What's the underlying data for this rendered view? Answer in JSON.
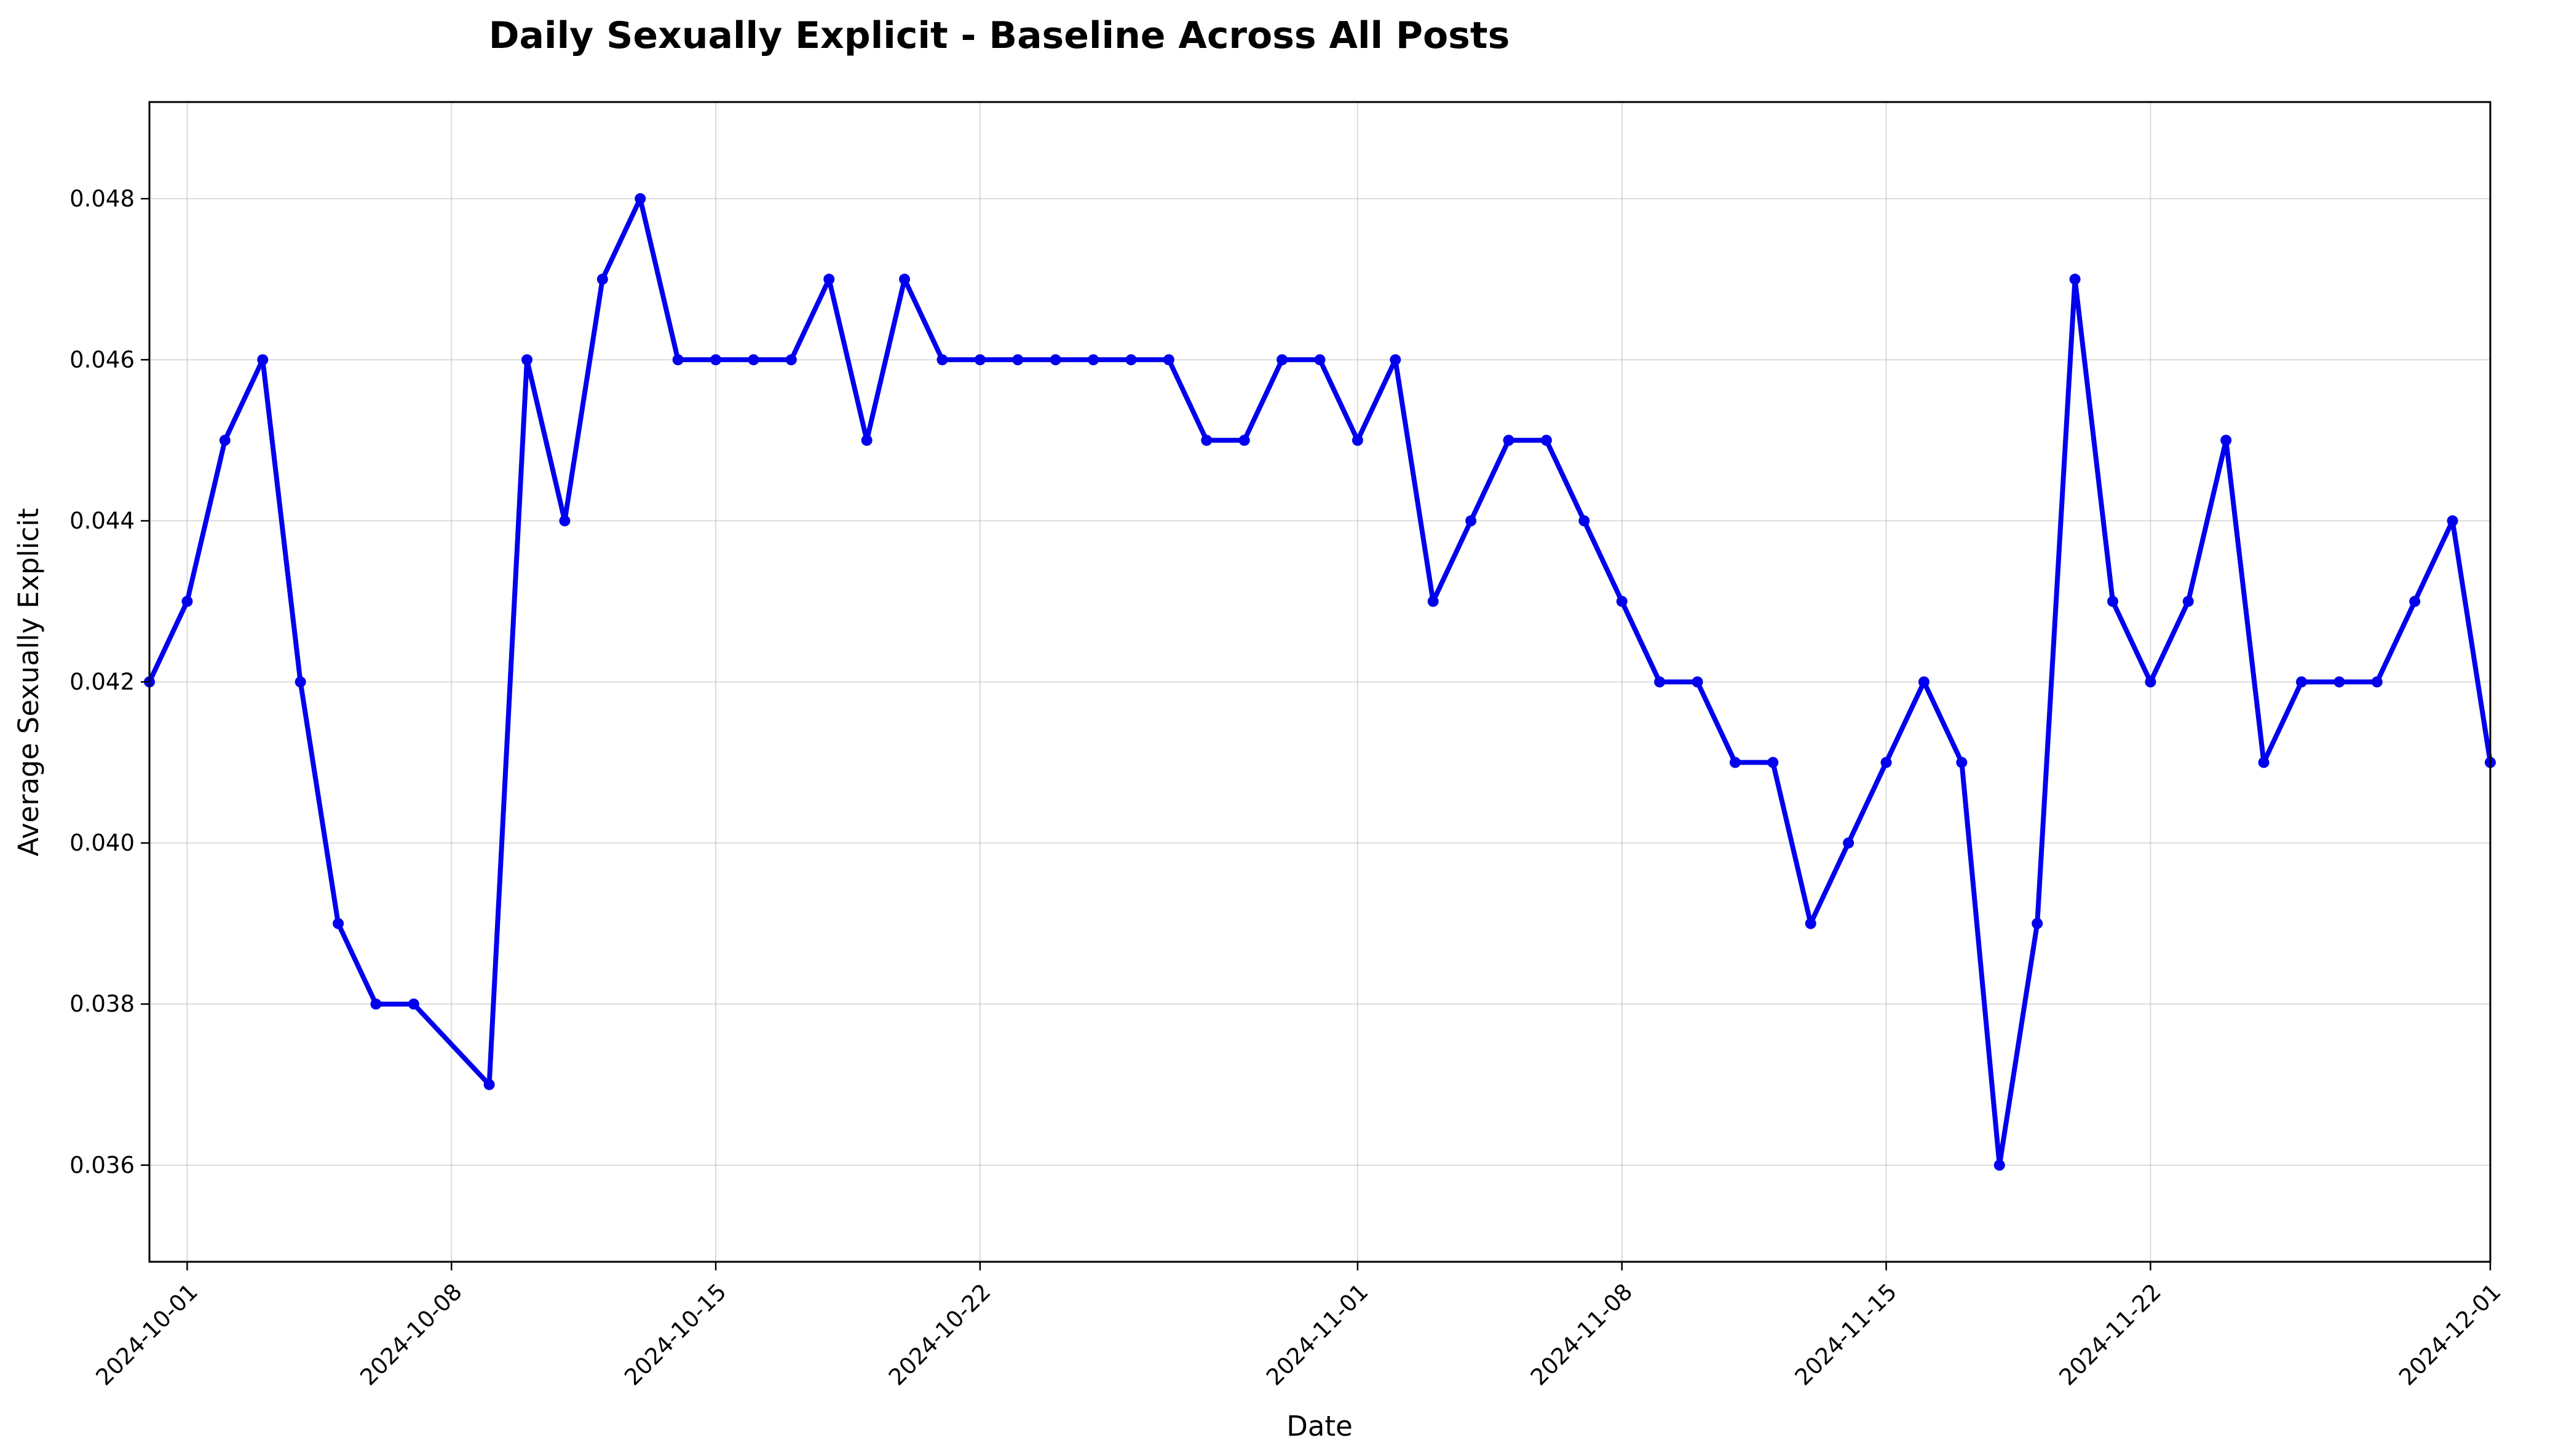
{
  "chart_data": {
    "type": "line",
    "title": "Daily Sexually Explicit - Baseline Across All Posts",
    "xlabel": "Date",
    "ylabel": "Average Sexually Explicit",
    "x_tick_labels": [
      "2024-10-01",
      "2024-10-08",
      "2024-10-15",
      "2024-10-22",
      "2024-11-01",
      "2024-11-08",
      "2024-11-15",
      "2024-11-22",
      "2024-12-01"
    ],
    "y_tick_labels": [
      "0.036",
      "0.038",
      "0.040",
      "0.042",
      "0.044",
      "0.046",
      "0.048"
    ],
    "y_ticks": [
      0.036,
      0.038,
      0.04,
      0.042,
      0.044,
      0.046,
      0.048
    ],
    "xlim": [
      "2024-09-30",
      "2024-12-01"
    ],
    "ylim": [
      0.0348,
      0.0492
    ],
    "grid": true,
    "color": "#0000ee",
    "series": [
      {
        "x": [
          "2024-09-30",
          "2024-10-01",
          "2024-10-02",
          "2024-10-03",
          "2024-10-04",
          "2024-10-05",
          "2024-10-06",
          "2024-10-07",
          "2024-10-09",
          "2024-10-10",
          "2024-10-11",
          "2024-10-12",
          "2024-10-13",
          "2024-10-14",
          "2024-10-15",
          "2024-10-16",
          "2024-10-17",
          "2024-10-18",
          "2024-10-19",
          "2024-10-20",
          "2024-10-21",
          "2024-10-22",
          "2024-10-23",
          "2024-10-24",
          "2024-10-25",
          "2024-10-26",
          "2024-10-27",
          "2024-10-28",
          "2024-10-29",
          "2024-10-30",
          "2024-10-31",
          "2024-11-01",
          "2024-11-02",
          "2024-11-03",
          "2024-11-04",
          "2024-11-05",
          "2024-11-06",
          "2024-11-07",
          "2024-11-08",
          "2024-11-09",
          "2024-11-10",
          "2024-11-11",
          "2024-11-12",
          "2024-11-13",
          "2024-11-14",
          "2024-11-15",
          "2024-11-16",
          "2024-11-17",
          "2024-11-18",
          "2024-11-19",
          "2024-11-20",
          "2024-11-21",
          "2024-11-22",
          "2024-11-23",
          "2024-11-24",
          "2024-11-25",
          "2024-11-26",
          "2024-11-27",
          "2024-11-28",
          "2024-11-29",
          "2024-11-30",
          "2024-12-01"
        ],
        "y": [
          0.042,
          0.043,
          0.045,
          0.046,
          0.042,
          0.039,
          0.038,
          0.038,
          0.037,
          0.046,
          0.044,
          0.047,
          0.048,
          0.046,
          0.046,
          0.046,
          0.046,
          0.047,
          0.045,
          0.047,
          0.046,
          0.046,
          0.046,
          0.046,
          0.046,
          0.046,
          0.046,
          0.045,
          0.045,
          0.046,
          0.046,
          0.045,
          0.046,
          0.043,
          0.044,
          0.045,
          0.045,
          0.044,
          0.043,
          0.042,
          0.042,
          0.041,
          0.041,
          0.039,
          0.04,
          0.041,
          0.042,
          0.041,
          0.036,
          0.039,
          0.047,
          0.043,
          0.042,
          0.043,
          0.045,
          0.041,
          0.042,
          0.042,
          0.042,
          0.043,
          0.044,
          0.041
        ]
      }
    ]
  }
}
